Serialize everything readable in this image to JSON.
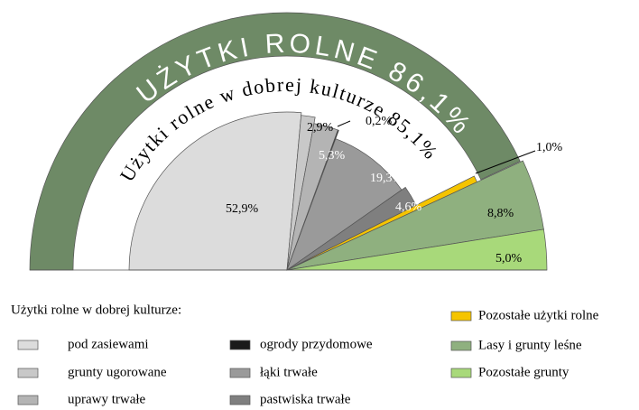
{
  "chart_data": {
    "type": "pie",
    "ring": {
      "label": "UŻYTKI ROLNE 86,1%",
      "value": 86.1,
      "color": "#6e8a66"
    },
    "inner_label": {
      "label": "Użytki rolne w dobrej kulturze 85,1%",
      "value": 85.1
    },
    "legend_title": "Użytki rolne w dobrej kulturze:",
    "categories": [
      "pod zasiewami",
      "grunty ugorowane",
      "uprawy trwałe",
      "ogrody przydomowe",
      "łąki trwałe",
      "pastwiska trwałe",
      "Pozostałe użytki rolne",
      "Lasy i grunty leśne",
      "Pozostałe grunty"
    ],
    "values": [
      52.9,
      2.9,
      5.3,
      0.2,
      19.3,
      4.6,
      1.0,
      8.8,
      5.0
    ],
    "value_labels": [
      "52,9%",
      "2,9%",
      "5,3%",
      "0,2%",
      "19,3%",
      "4,6%",
      "1,0%",
      "8,8%",
      "5,0%"
    ],
    "colors": [
      "#dcdcdc",
      "#c8c8c8",
      "#b4b4b4",
      "#1a1a1a",
      "#9a9a9a",
      "#7f7f7f",
      "#f5c400",
      "#8fb07f",
      "#a8d97a"
    ]
  }
}
